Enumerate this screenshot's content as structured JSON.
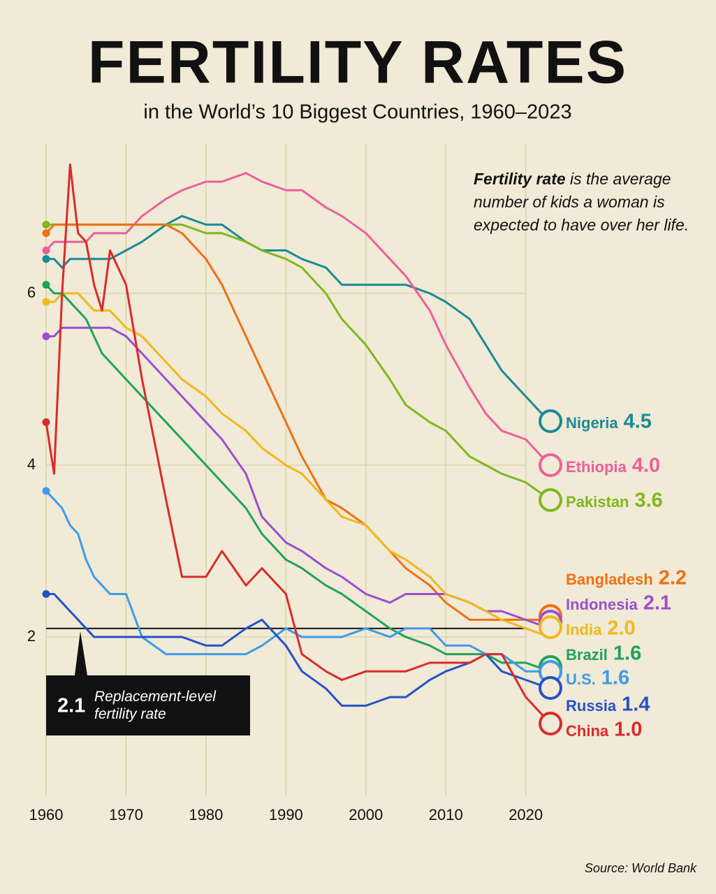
{
  "chart_data": {
    "type": "line",
    "title": "FERTILITY RATES",
    "subtitle": "in the World’s 10 Biggest Countries, 1960–2023",
    "note": {
      "bold": "Fertility rate",
      "text": "is the average number of kids a woman is expected to have over her life."
    },
    "replacement": {
      "value": 2.1,
      "text": "Replacement-level fertility rate"
    },
    "source": "Source: World Bank",
    "x": [
      1960,
      1961,
      1962,
      1963,
      1964,
      1965,
      1966,
      1967,
      1968,
      1970,
      1972,
      1975,
      1977,
      1980,
      1982,
      1985,
      1987,
      1990,
      1992,
      1995,
      1997,
      2000,
      2003,
      2005,
      2008,
      2010,
      2013,
      2015,
      2017,
      2020,
      2023
    ],
    "xlim": [
      1960,
      2023
    ],
    "xticks": [
      1960,
      1970,
      1980,
      1990,
      2000,
      2010,
      2020
    ],
    "ylim": [
      0.15,
      7.75
    ],
    "yticks": [
      2,
      4,
      6
    ],
    "grid": true,
    "series": [
      {
        "name": "Nigeria",
        "color": "#1a8a96",
        "values": [
          6.4,
          6.4,
          6.3,
          6.4,
          6.4,
          6.4,
          6.4,
          6.4,
          6.4,
          6.5,
          6.6,
          6.8,
          6.9,
          6.8,
          6.8,
          6.6,
          6.5,
          6.5,
          6.4,
          6.3,
          6.1,
          6.1,
          6.1,
          6.1,
          6.0,
          5.9,
          5.7,
          5.4,
          5.1,
          4.8,
          4.5
        ]
      },
      {
        "name": "Ethiopia",
        "color": "#ec5f9a",
        "values": [
          6.5,
          6.6,
          6.6,
          6.6,
          6.6,
          6.6,
          6.7,
          6.7,
          6.7,
          6.7,
          6.9,
          7.1,
          7.2,
          7.3,
          7.3,
          7.4,
          7.3,
          7.2,
          7.2,
          7.0,
          6.9,
          6.7,
          6.4,
          6.2,
          5.8,
          5.4,
          4.9,
          4.6,
          4.4,
          4.3,
          4.0
        ],
        "value_labels": [
          null,
          null,
          null,
          null,
          null,
          null,
          null,
          null,
          null,
          null,
          null,
          null,
          null,
          null,
          null,
          null,
          null,
          null,
          null,
          null,
          null,
          null,
          null,
          null,
          null,
          null,
          null,
          null,
          null,
          null,
          "4.0"
        ]
      },
      {
        "name": "Pakistan",
        "color": "#7fb81e",
        "values": [
          6.8,
          6.8,
          6.8,
          6.8,
          6.8,
          6.8,
          6.8,
          6.8,
          6.8,
          6.8,
          6.8,
          6.8,
          6.8,
          6.7,
          6.7,
          6.6,
          6.5,
          6.4,
          6.3,
          6.0,
          5.7,
          5.4,
          5.0,
          4.7,
          4.5,
          4.4,
          4.1,
          4.0,
          3.9,
          3.8,
          3.6
        ]
      },
      {
        "name": "Bangladesh",
        "color": "#f07014",
        "values": [
          6.7,
          6.8,
          6.8,
          6.8,
          6.8,
          6.8,
          6.8,
          6.8,
          6.8,
          6.8,
          6.8,
          6.8,
          6.7,
          6.4,
          6.1,
          5.5,
          5.1,
          4.5,
          4.1,
          3.6,
          3.5,
          3.3,
          3.0,
          2.8,
          2.6,
          2.4,
          2.2,
          2.2,
          2.2,
          2.2,
          2.2
        ]
      },
      {
        "name": "Indonesia",
        "color": "#9a4fd0",
        "values": [
          5.5,
          5.5,
          5.6,
          5.6,
          5.6,
          5.6,
          5.6,
          5.6,
          5.6,
          5.5,
          5.3,
          5.0,
          4.8,
          4.5,
          4.3,
          3.9,
          3.4,
          3.1,
          3.0,
          2.8,
          2.7,
          2.5,
          2.4,
          2.5,
          2.5,
          2.5,
          2.4,
          2.3,
          2.3,
          2.2,
          2.1
        ]
      },
      {
        "name": "India",
        "color": "#f2b71b",
        "values": [
          5.9,
          5.9,
          6.0,
          6.0,
          6.0,
          5.9,
          5.8,
          5.8,
          5.8,
          5.6,
          5.5,
          5.2,
          5.0,
          4.8,
          4.6,
          4.4,
          4.2,
          4.0,
          3.9,
          3.6,
          3.4,
          3.3,
          3.0,
          2.9,
          2.7,
          2.5,
          2.4,
          2.3,
          2.2,
          2.1,
          2.0
        ],
        "value_labels": [
          null,
          null,
          null,
          null,
          null,
          null,
          null,
          null,
          null,
          null,
          null,
          null,
          null,
          null,
          null,
          null,
          null,
          null,
          null,
          null,
          null,
          null,
          null,
          null,
          null,
          null,
          null,
          null,
          null,
          null,
          "2.0"
        ]
      },
      {
        "name": "Brazil",
        "color": "#1fa35a",
        "values": [
          6.1,
          6.0,
          6.0,
          5.9,
          5.8,
          5.7,
          5.5,
          5.3,
          5.2,
          5.0,
          4.8,
          4.5,
          4.3,
          4.0,
          3.8,
          3.5,
          3.2,
          2.9,
          2.8,
          2.6,
          2.5,
          2.3,
          2.1,
          2.0,
          1.9,
          1.8,
          1.8,
          1.8,
          1.7,
          1.7,
          1.6
        ]
      },
      {
        "name": "U.S.",
        "color": "#3d9be9",
        "values": [
          3.7,
          3.6,
          3.5,
          3.3,
          3.2,
          2.9,
          2.7,
          2.6,
          2.5,
          2.5,
          2.0,
          1.8,
          1.8,
          1.8,
          1.8,
          1.8,
          1.9,
          2.1,
          2.0,
          2.0,
          2.0,
          2.1,
          2.0,
          2.1,
          2.1,
          1.9,
          1.9,
          1.8,
          1.8,
          1.6,
          1.6
        ]
      },
      {
        "name": "Russia",
        "color": "#2452c8",
        "values": [
          2.5,
          2.5,
          2.4,
          2.3,
          2.2,
          2.1,
          2.0,
          2.0,
          2.0,
          2.0,
          2.0,
          2.0,
          2.0,
          1.9,
          1.9,
          2.1,
          2.2,
          1.9,
          1.6,
          1.4,
          1.2,
          1.2,
          1.3,
          1.3,
          1.5,
          1.6,
          1.7,
          1.8,
          1.6,
          1.5,
          1.4
        ]
      },
      {
        "name": "China",
        "color": "#d92b2b",
        "values": [
          4.5,
          3.9,
          6.0,
          7.5,
          6.7,
          6.6,
          6.1,
          5.8,
          6.5,
          6.1,
          5.0,
          3.6,
          2.7,
          2.7,
          3.0,
          2.6,
          2.8,
          2.5,
          1.8,
          1.6,
          1.5,
          1.6,
          1.6,
          1.6,
          1.7,
          1.7,
          1.7,
          1.8,
          1.8,
          1.3,
          1.0
        ],
        "value_labels": [
          null,
          null,
          null,
          null,
          null,
          null,
          null,
          null,
          null,
          null,
          null,
          null,
          null,
          null,
          null,
          null,
          null,
          null,
          null,
          null,
          null,
          null,
          null,
          null,
          null,
          null,
          null,
          null,
          null,
          null,
          "1.0"
        ]
      }
    ]
  }
}
